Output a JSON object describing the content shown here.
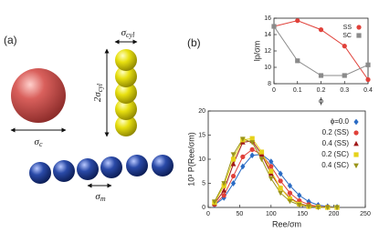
{
  "panel_labels": [
    "(a)",
    "(b)"
  ],
  "illustration": {
    "sphere": {
      "symbol": "σ",
      "sub": "c"
    },
    "cylinder_width": {
      "symbol": "σ",
      "sub": "cyl"
    },
    "cylinder_length": {
      "symbol": "2σ",
      "sub": "cyl"
    },
    "monomer": {
      "symbol": "σ",
      "sub": "m"
    }
  },
  "chart_data": [
    {
      "type": "line",
      "xlabel": "ϕ",
      "ylabel": "lp/σm",
      "x": [
        0,
        0.1,
        0.2,
        0.3,
        0.4
      ],
      "xlim": [
        0,
        0.4
      ],
      "xticks": [
        0,
        0.1,
        0.2,
        0.3,
        0.4
      ],
      "ylim": [
        8,
        16
      ],
      "yticks": [
        8,
        10,
        12,
        14,
        16
      ],
      "legend": "upper right",
      "series": [
        {
          "name": "SS",
          "color": "#e0413a",
          "marker": "circle",
          "values": [
            15,
            15.7,
            14.6,
            12.6,
            8.5
          ]
        },
        {
          "name": "SC",
          "color": "#8a8a8a",
          "marker": "square",
          "values": [
            15,
            10.8,
            9,
            9,
            10.3
          ]
        }
      ]
    },
    {
      "type": "line",
      "xlabel": "Ree/σm",
      "ylabel": "10³ P(Ree/σm)",
      "x": [
        10,
        25,
        40,
        55,
        70,
        85,
        100,
        115,
        130,
        145,
        160,
        175,
        190,
        205
      ],
      "xlim": [
        0,
        250
      ],
      "xticks": [
        0,
        50,
        100,
        150,
        200,
        250
      ],
      "ylim": [
        0,
        20
      ],
      "yticks": [
        0,
        5,
        10,
        15,
        20
      ],
      "legend": "upper right",
      "series": [
        {
          "name": "ϕ=0.0",
          "color": "#2a6bc4",
          "marker": "diamond",
          "values": [
            0.5,
            2,
            5,
            8.5,
            10.8,
            11,
            9.5,
            7,
            4.5,
            2.5,
            1.2,
            0.5,
            0.2,
            0.1
          ]
        },
        {
          "name": "0.2 (SS)",
          "color": "#e0413a",
          "marker": "circle",
          "values": [
            0.6,
            2.5,
            6.5,
            10.5,
            12,
            11,
            8.5,
            5.5,
            3,
            1.4,
            0.6,
            0.2,
            0.1,
            0
          ]
        },
        {
          "name": "0.4 (SS)",
          "color": "#a01818",
          "marker": "triangle-up",
          "values": [
            0.8,
            3.5,
            9,
            13.5,
            13.8,
            11,
            7,
            4,
            2,
            0.8,
            0.3,
            0.1,
            0,
            0
          ]
        },
        {
          "name": "0.2 (SC)",
          "color": "#e6d21a",
          "marker": "square",
          "values": [
            1,
            4.5,
            10,
            14,
            14.3,
            11.5,
            7.5,
            4,
            1.8,
            0.7,
            0.2,
            0.1,
            0,
            0
          ]
        },
        {
          "name": "0.4 (SC)",
          "color": "#9a9418",
          "marker": "triangle-down",
          "values": [
            1.2,
            5,
            11,
            14.2,
            13.5,
            10,
            6,
            3,
            1.3,
            0.5,
            0.2,
            0,
            0,
            0
          ]
        }
      ]
    }
  ]
}
